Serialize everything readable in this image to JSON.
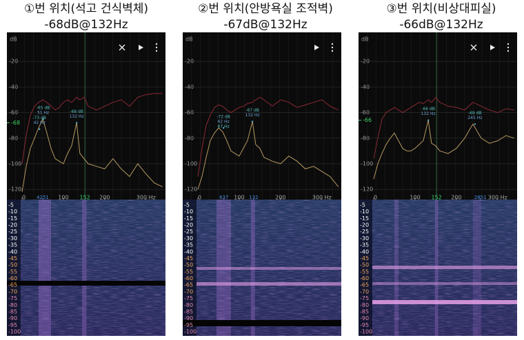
{
  "axes": {
    "y_unit": "dB",
    "ylim": [
      -128,
      0
    ],
    "yticks": [
      -20,
      -40,
      -60,
      -80,
      -100,
      -120
    ],
    "xlim": [
      0,
      347
    ],
    "xticks": [
      0,
      100,
      200,
      {
        "value": 300,
        "label": "300 Hz"
      }
    ],
    "x": [
      0,
      10,
      20,
      30,
      40,
      50,
      60,
      70,
      80,
      90,
      100,
      110,
      120,
      132,
      140,
      150,
      160,
      180,
      200,
      220,
      240,
      260,
      280,
      300,
      320,
      340
    ],
    "spectrogram_ticks": [
      "-5",
      "-10",
      "-15",
      "-20",
      "-25",
      "-30",
      "-35",
      "-40",
      "-45",
      "-50",
      "-55",
      "-60",
      "-65",
      "-70",
      "-75",
      "-80",
      "-85",
      "-90",
      "-95",
      "-100"
    ]
  },
  "panels": [
    {
      "title": "①번 위치(석고 건식벽체)",
      "subtitle": "-68dB@132Hz",
      "series": [
        {
          "color": "#8a2a35",
          "values": [
            -100,
            -78,
            -62,
            -55,
            -52,
            -50,
            -52,
            -55,
            -58,
            -56,
            -52,
            -50,
            -52,
            -48,
            -50,
            -48,
            -55,
            -58,
            -55,
            -52,
            -50,
            -55,
            -48,
            -46,
            -45,
            -45
          ]
        },
        {
          "color": "#b79a62",
          "values": [
            -122,
            -102,
            -88,
            -80,
            -72,
            -65,
            -76,
            -88,
            -96,
            -98,
            -100,
            -92,
            -86,
            -68,
            -92,
            -96,
            -100,
            -102,
            -104,
            -96,
            -104,
            -110,
            -100,
            -108,
            -115,
            -118
          ]
        }
      ],
      "cursor_x": {
        "value": 152,
        "label": "152"
      },
      "cursor_y": {
        "value": -68,
        "label": "-68"
      },
      "marker_x": {
        "value": 50,
        "label": "4251"
      },
      "annotations": [
        {
          "lines": [
            "-65 dB",
            "51 Hz"
          ],
          "x": 51,
          "y": -65
        },
        {
          "lines": [
            "-73 dB",
            "42 Hz"
          ],
          "x": 42,
          "y": -73
        },
        {
          "lines": [
            "-68 dB",
            "132 Hz"
          ],
          "x": 132,
          "y": -68
        }
      ]
    },
    {
      "title": "②번 위치(안방욕실 조적벽)",
      "subtitle": "-67dB@132Hz",
      "series": [
        {
          "color": "#8a2a35",
          "values": [
            -110,
            -88,
            -70,
            -62,
            -56,
            -54,
            -55,
            -58,
            -60,
            -58,
            -56,
            -55,
            -53,
            -52,
            -50,
            -48,
            -50,
            -55,
            -50,
            -52,
            -56,
            -54,
            -52,
            -50,
            -55,
            -58
          ]
        },
        {
          "color": "#b79a62",
          "values": [
            -120,
            -110,
            -95,
            -82,
            -76,
            -72,
            -75,
            -82,
            -90,
            -92,
            -94,
            -88,
            -82,
            -67,
            -85,
            -88,
            -95,
            -98,
            -100,
            -94,
            -98,
            -104,
            -102,
            -106,
            -110,
            -118
          ]
        }
      ],
      "marker_x": {
        "value": 63,
        "label": "637"
      },
      "marker_x2": {
        "value": 135,
        "label": "132"
      },
      "annotations": [
        {
          "lines": [
            "-72 dB",
            "62 Hz",
            "67 Hz"
          ],
          "x": 62,
          "y": -72
        },
        {
          "lines": [
            "-67 dB",
            "132 Hz"
          ],
          "x": 132,
          "y": -67
        }
      ]
    },
    {
      "title": "③번 위치(비상대피실)",
      "subtitle": "-66dB@132Hz",
      "series": [
        {
          "color": "#8a2a35",
          "values": [
            -96,
            -80,
            -65,
            -60,
            -58,
            -56,
            -58,
            -60,
            -58,
            -56,
            -54,
            -52,
            -53,
            -50,
            -52,
            -48,
            -52,
            -55,
            -56,
            -58,
            -52,
            -55,
            -58,
            -60,
            -57,
            -58
          ]
        },
        {
          "color": "#b79a62",
          "values": [
            -112,
            -100,
            -92,
            -85,
            -80,
            -76,
            -82,
            -88,
            -90,
            -90,
            -88,
            -85,
            -82,
            -66,
            -84,
            -86,
            -90,
            -92,
            -88,
            -80,
            -69,
            -80,
            -84,
            -82,
            -78,
            -80
          ]
        }
      ],
      "cursor_x": {
        "value": 152,
        "label": "152"
      },
      "cursor_y": {
        "value": -66,
        "label": "-66"
      },
      "marker_x": {
        "value": 258,
        "label": "2851"
      },
      "annotations": [
        {
          "lines": [
            "-66 dB",
            "132 Hz"
          ],
          "x": 132,
          "y": -66
        },
        {
          "lines": [
            "-69 dB",
            "245 Hz"
          ],
          "x": 245,
          "y": -69
        }
      ]
    }
  ]
}
